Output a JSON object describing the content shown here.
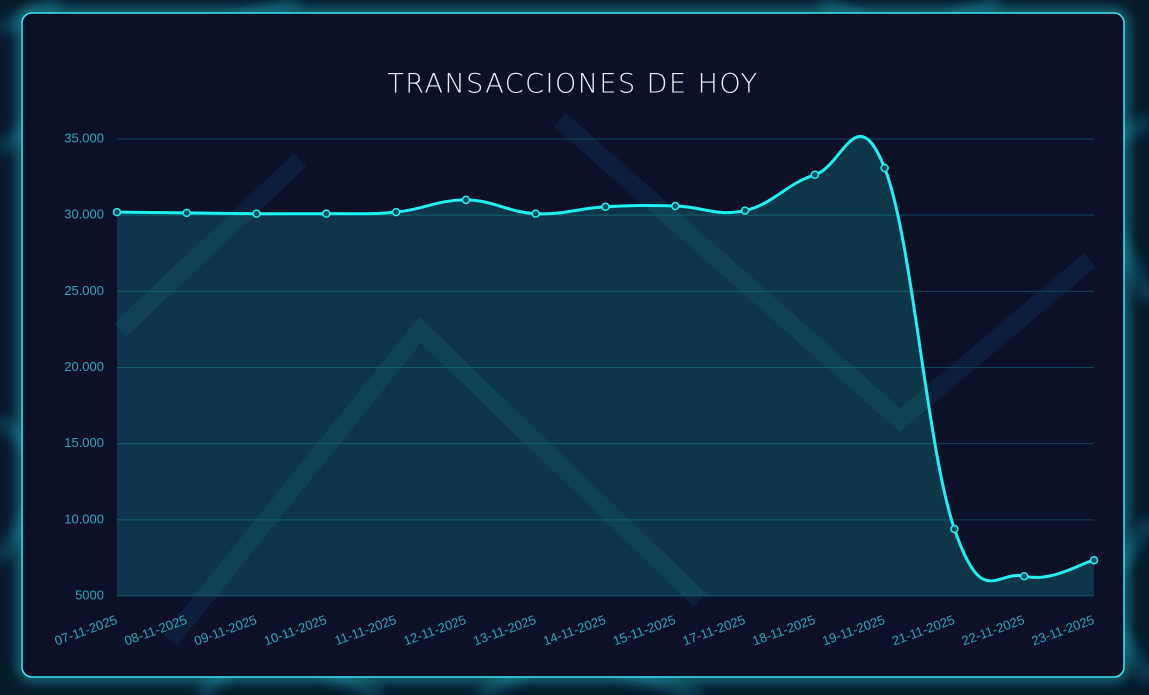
{
  "chart_data": {
    "type": "line",
    "title": "TRANSACCIONES DE HOY",
    "categories": [
      "07-11-2025",
      "08-11-2025",
      "09-11-2025",
      "10-11-2025",
      "11-11-2025",
      "12-11-2025",
      "13-11-2025",
      "14-11-2025",
      "15-11-2025",
      "17-11-2025",
      "18-11-2025",
      "19-11-2025",
      "21-11-2025",
      "22-11-2025",
      "23-11-2025"
    ],
    "values": [
      30200,
      30150,
      30100,
      30100,
      30200,
      31000,
      30100,
      30550,
      30600,
      30300,
      32650,
      33100,
      9400,
      6300,
      7350
    ],
    "color": "#1ff0f2",
    "ylim": [
      5000,
      35000
    ],
    "yticks": [
      5000,
      {
        "value": 10000,
        "label": "10.000"
      },
      {
        "value": 15000,
        "label": "15.000"
      },
      {
        "value": 20000,
        "label": "20.000"
      },
      {
        "value": 25000,
        "label": "25.000"
      },
      {
        "value": 30000,
        "label": "30.000"
      },
      {
        "value": 35000,
        "label": "35.000"
      }
    ],
    "grid": true,
    "fill": true
  }
}
